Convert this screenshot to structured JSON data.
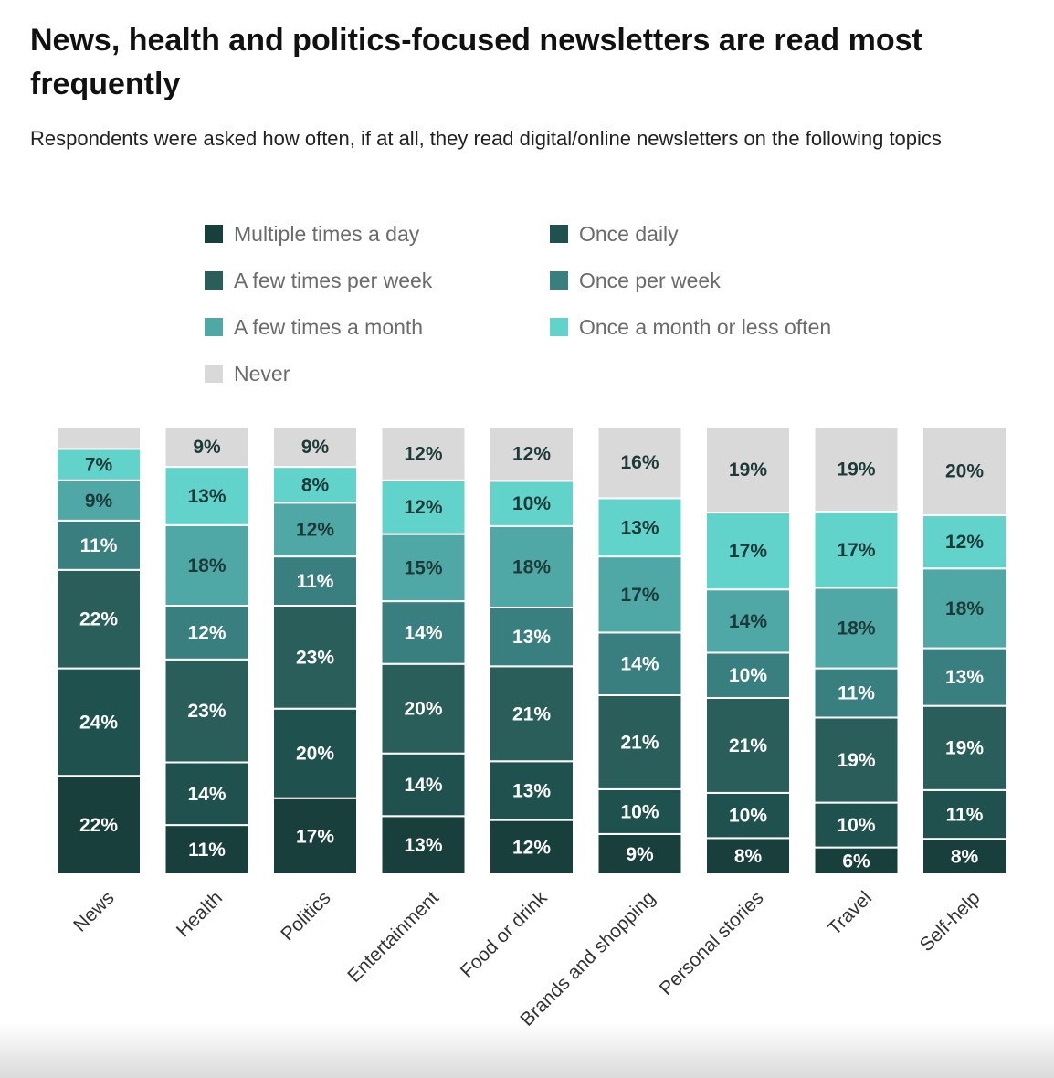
{
  "title": "News, health and politics-focused newsletters are read most frequently",
  "subtitle": "Respondents were asked how often, if at all, they read digital/online newsletters on the following topics",
  "colors": {
    "multiple_daily": "#183f3b",
    "once_daily": "#1f524e",
    "few_week": "#2a5e5a",
    "once_week": "#3a7f80",
    "few_month": "#4fa8a6",
    "month_or_less": "#62d3cb",
    "never": "#d9d9d9"
  },
  "chart_data": {
    "type": "bar",
    "stacked": true,
    "normalized": true,
    "title": "News, health and politics-focused newsletters are read most frequently",
    "subtitle": "Respondents were asked how often, if at all, they read digital/online newsletters on the following topics",
    "xlabel": "",
    "ylabel": "",
    "ylim": [
      0,
      100
    ],
    "grid": false,
    "legend_position": "top",
    "categories": [
      "News",
      "Health",
      "Politics",
      "Entertainment",
      "Food or drink",
      "Brands and shopping",
      "Personal stories",
      "Travel",
      "Self-help"
    ],
    "series": [
      {
        "key": "multiple_daily",
        "name": "Multiple times a day",
        "values": [
          22,
          11,
          17,
          13,
          12,
          9,
          8,
          6,
          8
        ]
      },
      {
        "key": "once_daily",
        "name": "Once daily",
        "values": [
          24,
          14,
          20,
          14,
          13,
          10,
          10,
          10,
          11
        ]
      },
      {
        "key": "few_week",
        "name": "A few times per week",
        "values": [
          22,
          23,
          23,
          20,
          21,
          21,
          21,
          19,
          19
        ]
      },
      {
        "key": "once_week",
        "name": "Once per week",
        "values": [
          11,
          12,
          11,
          14,
          13,
          14,
          10,
          11,
          13
        ]
      },
      {
        "key": "few_month",
        "name": "A few times a month",
        "values": [
          9,
          18,
          12,
          15,
          18,
          17,
          14,
          18,
          18
        ]
      },
      {
        "key": "month_or_less",
        "name": "Once a month or less often",
        "values": [
          7,
          13,
          8,
          12,
          10,
          13,
          17,
          17,
          12
        ]
      },
      {
        "key": "never",
        "name": "Never",
        "values": [
          5,
          9,
          9,
          12,
          12,
          16,
          19,
          19,
          20
        ]
      }
    ],
    "data_labels": [
      [
        "22%",
        "24%",
        "22%",
        "11%",
        "9%",
        "7%",
        ""
      ],
      [
        "11%",
        "14%",
        "23%",
        "12%",
        "18%",
        "13%",
        "9%"
      ],
      [
        "17%",
        "20%",
        "23%",
        "11%",
        "12%",
        "8%",
        "9%"
      ],
      [
        "13%",
        "14%",
        "20%",
        "14%",
        "15%",
        "12%",
        "12%"
      ],
      [
        "12%",
        "13%",
        "21%",
        "13%",
        "18%",
        "10%",
        "12%"
      ],
      [
        "9%",
        "10%",
        "21%",
        "14%",
        "17%",
        "13%",
        "16%"
      ],
      [
        "8%",
        "10%",
        "21%",
        "10%",
        "14%",
        "17%",
        "19%"
      ],
      [
        "6%",
        "10%",
        "19%",
        "11%",
        "18%",
        "17%",
        "19%"
      ],
      [
        "8%",
        "11%",
        "19%",
        "13%",
        "18%",
        "12%",
        "20%"
      ]
    ]
  }
}
